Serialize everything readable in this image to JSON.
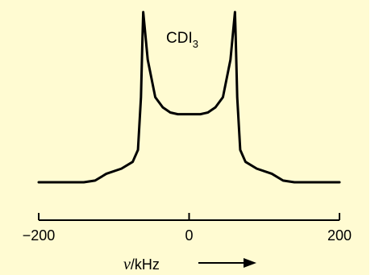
{
  "chart_data": {
    "type": "line",
    "title": "",
    "annotation": {
      "main": "CDI",
      "subscript": "3"
    },
    "xlabel": {
      "symbol": "ν",
      "unit": "/kHz"
    },
    "ylabel": "",
    "xlim": [
      -200,
      200
    ],
    "ylim": [
      0,
      1
    ],
    "xticks": [
      -200,
      0,
      200
    ],
    "xtick_labels": [
      "−200",
      "0",
      "200"
    ],
    "grid": false,
    "legend": "none",
    "line_color": "#000000",
    "background_color": "#fffbd2",
    "series": [
      {
        "x": [
          -200,
          -180,
          -160,
          -140,
          -125,
          -110,
          -90,
          -75,
          -68,
          -64,
          -62,
          -61,
          -55,
          -45,
          -35,
          -25,
          -15,
          0,
          15,
          25,
          35,
          45,
          55,
          61,
          62,
          64,
          68,
          75,
          90,
          110,
          125,
          140,
          160,
          180,
          200
        ],
        "values": [
          0.0,
          0.0,
          0.0,
          0.0,
          0.01,
          0.05,
          0.08,
          0.12,
          0.19,
          0.5,
          0.85,
          1.0,
          0.72,
          0.5,
          0.44,
          0.41,
          0.4,
          0.4,
          0.4,
          0.41,
          0.44,
          0.5,
          0.72,
          1.0,
          0.85,
          0.5,
          0.19,
          0.12,
          0.08,
          0.05,
          0.01,
          0.0,
          0.0,
          0.0,
          0.0
        ]
      }
    ]
  }
}
